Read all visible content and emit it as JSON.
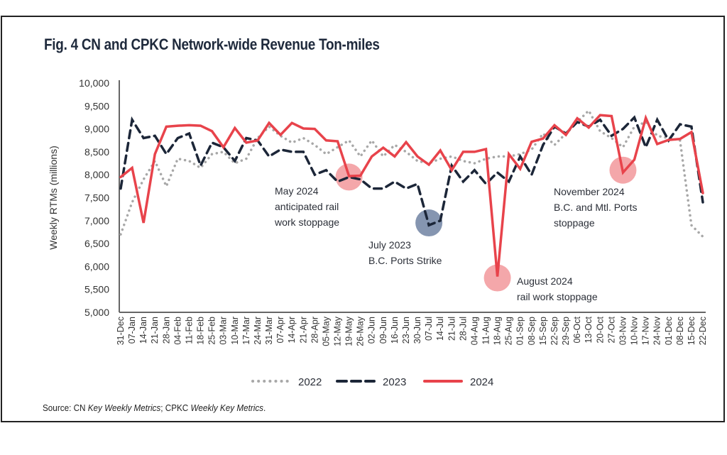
{
  "chart_data": {
    "type": "line",
    "title": "Fig. 4 CN and CPKC Network-wide Revenue Ton-miles",
    "xlabel": "",
    "ylabel": "Weekly RTMs (millions)",
    "ylim": [
      5000,
      10000
    ],
    "yticks": [
      5000,
      5500,
      6000,
      6500,
      7000,
      7500,
      8000,
      8500,
      9000,
      9500,
      10000
    ],
    "ytick_labels": [
      "5,000",
      "5,500",
      "6,000",
      "6,500",
      "7,000",
      "7,500",
      "8,000",
      "8,500",
      "9,000",
      "9,500",
      "10,000"
    ],
    "grid": false,
    "legend_position": "bottom",
    "x": [
      "31-Dec",
      "07-Jan",
      "14-Jan",
      "21-Jan",
      "28-Jan",
      "04-Feb",
      "11-Feb",
      "18-Feb",
      "25-Feb",
      "03-Mar",
      "10-Mar",
      "17-Mar",
      "24-Mar",
      "31-Mar",
      "07-Apr",
      "14-Apr",
      "21-Apr",
      "28-Apr",
      "05-May",
      "12-May",
      "19-May",
      "26-May",
      "02-Jun",
      "09-Jun",
      "16-Jun",
      "23-Jun",
      "30-Jun",
      "07-Jul",
      "14-Jul",
      "21-Jul",
      "28-Jul",
      "04-Aug",
      "11-Aug",
      "18-Aug",
      "25-Aug",
      "01-Sep",
      "08-Sep",
      "15-Sep",
      "22-Sep",
      "29-Sep",
      "06-Oct",
      "13-Oct",
      "20-Oct",
      "27-Oct",
      "03-Nov",
      "10-Nov",
      "17-Nov",
      "24-Nov",
      "01-Dec",
      "08-Dec",
      "15-Dec",
      "22-Dec"
    ],
    "series": [
      {
        "name": "2022",
        "style": "dotted",
        "color": "#a8a8a8",
        "values": [
          6700,
          7400,
          7900,
          8300,
          7750,
          8350,
          8300,
          8150,
          8450,
          8500,
          8250,
          8350,
          8800,
          9050,
          8850,
          8700,
          8800,
          8650,
          8450,
          8600,
          8750,
          8400,
          8750,
          8400,
          8650,
          8500,
          8300,
          8250,
          8350,
          8400,
          8300,
          8250,
          8350,
          8400,
          8400,
          8450,
          8550,
          8900,
          8650,
          8900,
          9150,
          9400,
          8950,
          8800,
          8600,
          9050,
          9150,
          8850,
          8800,
          8750,
          6900,
          6650
        ]
      },
      {
        "name": "2023",
        "style": "dashed",
        "color": "#1c2638",
        "values": [
          7700,
          9200,
          8800,
          8850,
          8450,
          8800,
          8900,
          8200,
          8700,
          8600,
          8300,
          8800,
          8750,
          8400,
          8550,
          8500,
          8500,
          8000,
          8100,
          7850,
          7950,
          7900,
          7700,
          7700,
          7850,
          7700,
          7800,
          6900,
          7000,
          8200,
          7850,
          8100,
          7800,
          8050,
          7850,
          8400,
          8000,
          8650,
          9050,
          8900,
          9150,
          9050,
          9200,
          8850,
          9000,
          9250,
          8600,
          9200,
          8750,
          9100,
          9050,
          7400
        ]
      },
      {
        "name": "2024",
        "style": "solid",
        "color": "#e8434b",
        "values": [
          7950,
          8150,
          6950,
          8450,
          9050,
          9070,
          9080,
          9070,
          8950,
          8600,
          9020,
          8700,
          8750,
          9130,
          8870,
          9130,
          9010,
          9000,
          8750,
          8730,
          7970,
          7980,
          8400,
          8590,
          8400,
          8710,
          8400,
          8220,
          8530,
          8100,
          8500,
          8500,
          8560,
          5780,
          8450,
          8130,
          8720,
          8790,
          9080,
          8870,
          9230,
          9030,
          9300,
          9280,
          8050,
          8330,
          9240,
          8670,
          8760,
          8780,
          8930,
          7600
        ]
      }
    ],
    "annotations": [
      {
        "lines": [
          "May 2024",
          "anticipated rail",
          "work stoppage"
        ],
        "x_index": 20,
        "value": 7950,
        "highlight_color": "#f08a8e"
      },
      {
        "lines": [
          "July 2023",
          "B.C. Ports Strike"
        ],
        "x_index": 27,
        "value": 6950,
        "highlight_color": "#5c7196"
      },
      {
        "lines": [
          "August 2024",
          "rail work stoppage"
        ],
        "x_index": 33,
        "value": 5750,
        "highlight_color": "#f08a8e"
      },
      {
        "lines": [
          "November 2024",
          "B.C. and Mtl. Ports",
          "stoppage"
        ],
        "x_index": 44,
        "value": 8100,
        "highlight_color": "#f08a8e"
      }
    ],
    "source": {
      "prefix": "Source: CN ",
      "italic1": "Key Weekly Metrics",
      "middle": "; CPKC ",
      "italic2": "Weekly Key Metrics",
      "suffix": "."
    }
  }
}
